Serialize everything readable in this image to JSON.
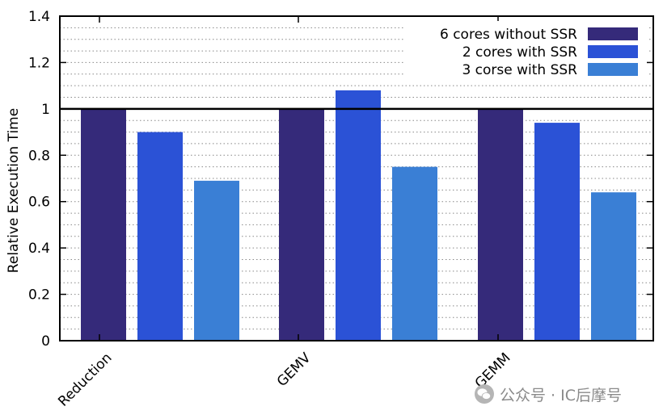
{
  "chart_data": {
    "type": "bar",
    "title": "",
    "xlabel": "",
    "ylabel": "Relative Execution Time",
    "ylim": [
      0,
      1.4
    ],
    "yticks": [
      0,
      0.2,
      0.4,
      0.6,
      0.8,
      1,
      1.2,
      1.4
    ],
    "ytick_labels": [
      "0",
      "0.2",
      "0.4",
      "0.6",
      "0.8",
      "1",
      "1.2",
      "1.4"
    ],
    "grid": true,
    "reference_line": 1,
    "legend_position": "top-right",
    "categories": [
      "Reduction",
      "GEMV",
      "GEMM"
    ],
    "series": [
      {
        "name": "6 cores without SSR",
        "color": "#352A7A",
        "values": [
          1.0,
          1.0,
          1.0
        ]
      },
      {
        "name": "2 cores with SSR",
        "color": "#2B52D6",
        "values": [
          0.9,
          1.08,
          0.94
        ]
      },
      {
        "name": "3 corse with SSR",
        "color": "#3A7FD5",
        "values": [
          0.69,
          0.75,
          0.64
        ]
      }
    ]
  },
  "watermark": {
    "text": "公众号 · IC后摩号",
    "logo": "wechat-logo-icon"
  }
}
